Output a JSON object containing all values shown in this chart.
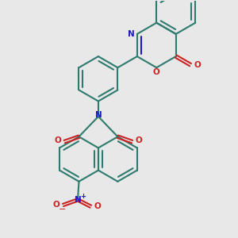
{
  "bg_color": "#e8e8e8",
  "bc": "#2d7a6e",
  "Nc": "#1a1acc",
  "Oc": "#cc2222",
  "lw": 1.5,
  "fig_w": 3.0,
  "fig_h": 3.0,
  "dpi": 100,
  "xlim": [
    -1.5,
    5.5
  ],
  "ylim": [
    -1.5,
    8.5
  ]
}
